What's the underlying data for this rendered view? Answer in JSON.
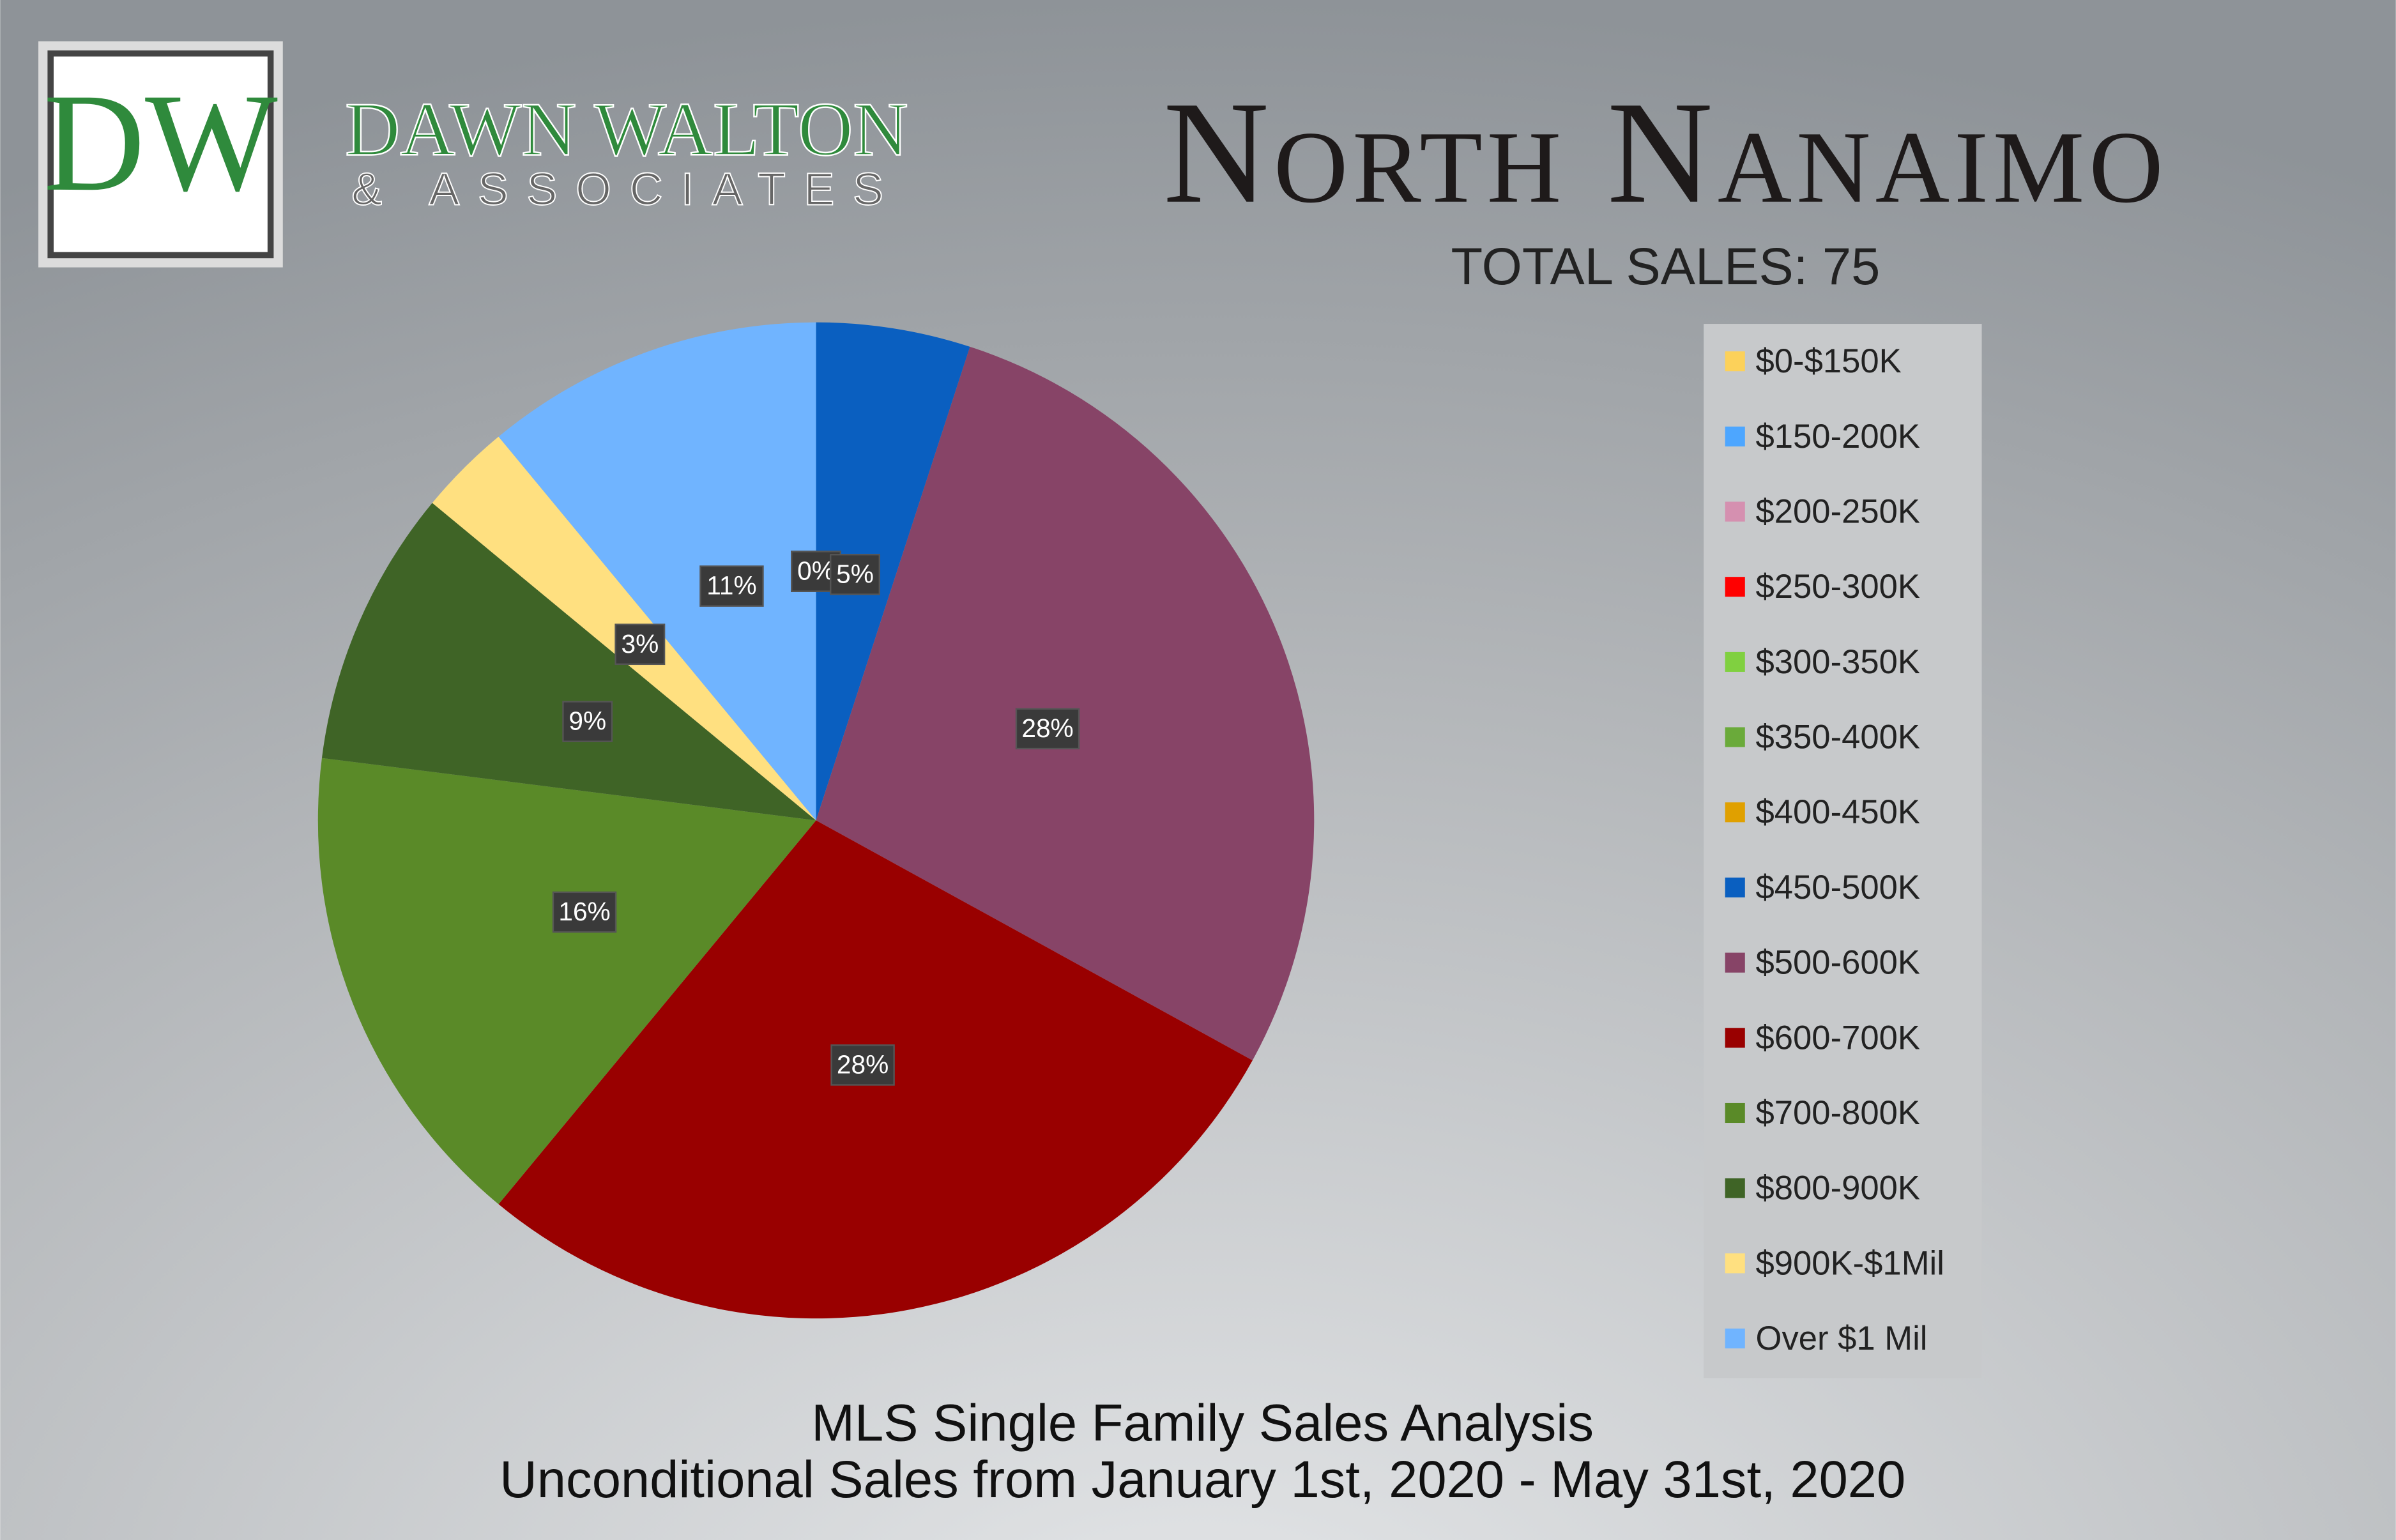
{
  "logo": {
    "initials": "DW",
    "name": "DAWN WALTON",
    "tagline": "& ASSOCIATES"
  },
  "chart_data": {
    "type": "pie",
    "title": "North Nanaimo",
    "subtitle": "TOTAL SALES: 75",
    "footer": [
      "MLS Single Family Sales Analysis",
      "Unconditional Sales from January 1st, 2020 - May 31st, 2020"
    ],
    "categories": [
      "$0-$150K",
      "$150-200K",
      "$200-250K",
      "$250-300K",
      "$300-350K",
      "$350-400K",
      "$400-450K",
      "$450-500K",
      "$500-600K",
      "$600-700K",
      "$700-800K",
      "$800-900K",
      "$900K-$1Mil",
      "Over $1 Mil"
    ],
    "values": [
      0,
      0,
      0,
      0,
      0,
      0,
      0,
      5,
      28,
      28,
      16,
      9,
      3,
      11
    ],
    "value_labels": [
      "0%",
      "0%",
      "0%",
      "0%",
      "0%",
      "0%",
      "0%",
      "5%",
      "28%",
      "28%",
      "16%",
      "9%",
      "3%",
      "11%"
    ],
    "colors": [
      "#fcd15a",
      "#4da6ff",
      "#d590b0",
      "#ff0000",
      "#80d040",
      "#6aaa3a",
      "#e0a000",
      "#0a5fc0",
      "#874467",
      "#990000",
      "#5a8a28",
      "#3f6426",
      "#ffe080",
      "#70b4ff"
    ],
    "legend": "right"
  }
}
